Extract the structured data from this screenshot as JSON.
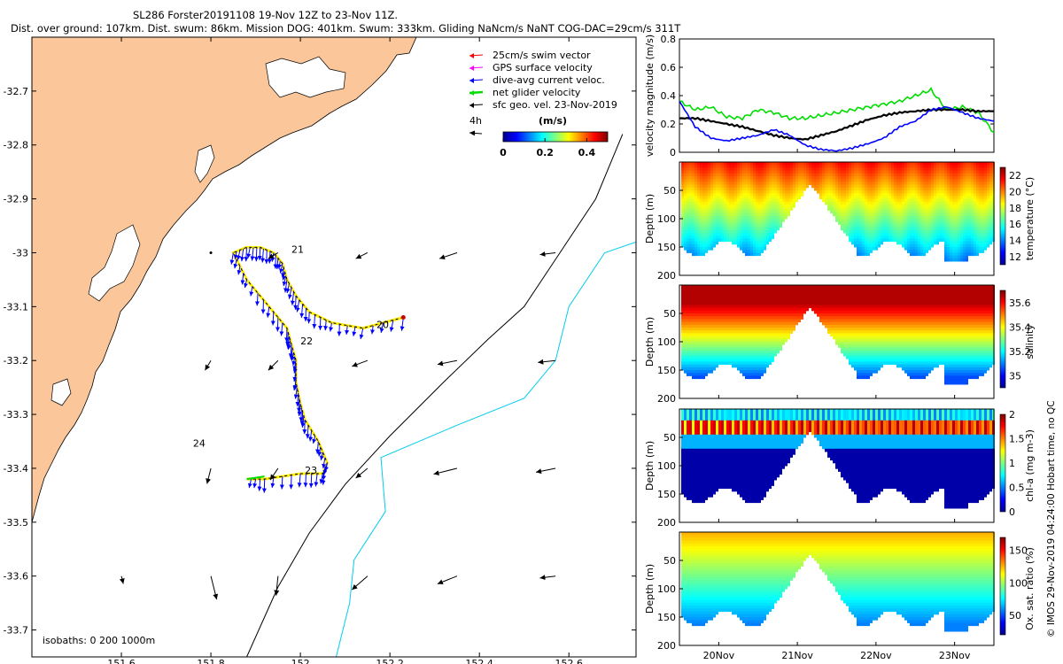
{
  "header": {
    "title": "SL286 Forster20191108 19-Nov 12Z to 23-Nov 11Z.",
    "subtitle": "Dist. over ground: 107km. Dist. swum: 86km. Mission DOG: 401km. Swum: 333km. Gliding NaNcm/s NaNT COG-DAC=29cm/s 311T"
  },
  "colors": {
    "land": "#fbc79a",
    "swim": "#ff0000",
    "gps": "#ff00ff",
    "dac": "#0000ff",
    "net": "#00dd00",
    "geo": "#000000",
    "isobath_200": "#000000",
    "isobath_1000": "#00ccee"
  },
  "map": {
    "x_ticks": [
      "151.6",
      "151.8",
      "152",
      "152.2",
      "152.4",
      "152.6"
    ],
    "y_ticks": [
      "-32.7",
      "-32.8",
      "-32.9",
      "-33",
      "-33.1",
      "-33.2",
      "-33.3",
      "-33.4",
      "-33.5",
      "-33.6",
      "-33.7"
    ],
    "xlim": [
      151.4,
      152.75
    ],
    "ylim": [
      -33.75,
      -32.6
    ],
    "legend": [
      {
        "label": "25cm/s swim vector",
        "color": "#ff0000",
        "icon": "arrow-icon"
      },
      {
        "label": "GPS surface velocity",
        "color": "#ff00ff",
        "icon": "arrow-icon"
      },
      {
        "label": "dive-avg current veloc.",
        "color": "#0000ff",
        "icon": "arrow-icon"
      },
      {
        "label": "net glider velocity",
        "color": "#00dd00",
        "icon": "arrow-icon"
      },
      {
        "label": "sfc geo. vel. 23-Nov-2019",
        "color": "#000000",
        "icon": "arrow-icon"
      }
    ],
    "scale_label": "4h",
    "colorbar": {
      "title": "(m/s)",
      "ticks": [
        "0",
        "0.2",
        "0.4"
      ],
      "range": [
        0,
        0.5
      ],
      "colormap": "jet"
    },
    "day_labels": [
      {
        "text": "21",
        "lon": 151.98,
        "lat": -33.0
      },
      {
        "text": "20",
        "lon": 152.17,
        "lat": -33.14
      },
      {
        "text": "22",
        "lon": 152.0,
        "lat": -33.17
      },
      {
        "text": "24",
        "lon": 151.76,
        "lat": -33.36
      },
      {
        "text": "23",
        "lon": 152.01,
        "lat": -33.41
      }
    ],
    "isobath_label": "isobaths: 0   200  1000m"
  },
  "panels": {
    "x_ticks": [
      "20Nov",
      "21Nov",
      "22Nov",
      "23Nov"
    ],
    "xlim_days": [
      19.5,
      23.5
    ],
    "velocity": {
      "ylabel": "velocity magnitude (m/s)",
      "y_ticks": [
        "0",
        "0.2",
        "0.4",
        "0.6",
        "0.8"
      ],
      "ylim": [
        0,
        0.8
      ]
    },
    "sections": [
      {
        "ylabel": "Depth (m)",
        "cbar_label": "temperature (°C)",
        "cbar_ticks": [
          "12",
          "14",
          "16",
          "18",
          "20",
          "22"
        ],
        "y_ticks": [
          "50",
          "100",
          "150",
          "200"
        ]
      },
      {
        "ylabel": "Depth (m)",
        "cbar_label": "salinity",
        "cbar_ticks": [
          "35",
          "35.2",
          "35.4",
          "35.6"
        ],
        "y_ticks": [
          "50",
          "100",
          "150",
          "200"
        ]
      },
      {
        "ylabel": "Depth (m)",
        "cbar_label": "chl-a (mg m-3)",
        "cbar_ticks": [
          "0",
          "0.5",
          "1",
          "1.5",
          "2"
        ],
        "y_ticks": [
          "50",
          "100",
          "150",
          "200"
        ]
      },
      {
        "ylabel": "Depth (m)",
        "cbar_label": "Ox. sat. ratio (%)",
        "cbar_ticks": [
          "50",
          "100",
          "150"
        ],
        "y_ticks": [
          "50",
          "100",
          "150",
          "200"
        ]
      }
    ]
  },
  "credit": "© IMOS 29-Nov-2019 04:24:00 Hobart time, no QC",
  "chart_data": [
    {
      "type": "scatter",
      "title": "SL286 Forster20191108 19-Nov 12Z to 23-Nov 11Z.",
      "xlabel": "",
      "ylabel": "",
      "xlim": [
        151.4,
        152.75
      ],
      "ylim": [
        -33.75,
        -32.6
      ],
      "glider_track": {
        "lon": [
          152.23,
          152.14,
          152.07,
          152.02,
          151.99,
          151.97,
          151.96,
          151.94,
          151.91,
          151.88,
          151.85,
          151.88,
          151.93,
          151.97,
          151.98,
          151.99,
          151.99,
          152.0,
          152.01,
          152.04,
          152.06,
          152.05,
          152.0,
          151.92,
          151.88
        ],
        "lat": [
          -33.12,
          -33.14,
          -33.13,
          -33.11,
          -33.08,
          -33.05,
          -33.02,
          -33.0,
          -32.99,
          -32.99,
          -33.0,
          -33.05,
          -33.1,
          -33.14,
          -33.17,
          -33.2,
          -33.24,
          -33.28,
          -33.31,
          -33.35,
          -33.39,
          -33.41,
          -33.41,
          -33.42,
          -33.42
        ]
      },
      "geostrophic_vectors": {
        "lon": [
          151.8,
          151.95,
          152.15,
          152.35,
          152.57,
          151.8,
          151.95,
          152.15,
          152.35,
          152.57,
          151.8,
          151.95,
          152.15,
          152.35,
          152.57,
          151.6,
          151.8,
          151.95,
          152.15,
          152.35,
          152.57
        ],
        "lat": [
          -33.0,
          -33.0,
          -33.0,
          -33.0,
          -33.0,
          -33.2,
          -33.2,
          -33.2,
          -33.2,
          -33.2,
          -33.4,
          -33.4,
          -33.4,
          -33.4,
          -33.4,
          -33.6,
          -33.6,
          -33.6,
          -33.6,
          -33.6,
          -33.6
        ],
        "u": [
          0.0,
          -0.05,
          -0.06,
          -0.09,
          -0.08,
          -0.03,
          -0.05,
          -0.08,
          -0.1,
          -0.09,
          -0.02,
          -0.04,
          -0.06,
          -0.12,
          -0.1,
          0.01,
          0.03,
          -0.01,
          -0.08,
          -0.1,
          -0.08
        ],
        "v": [
          0.0,
          -0.03,
          -0.03,
          -0.03,
          -0.01,
          -0.05,
          -0.05,
          -0.03,
          -0.02,
          -0.01,
          -0.08,
          -0.06,
          -0.05,
          -0.03,
          -0.02,
          -0.04,
          -0.12,
          -0.1,
          -0.07,
          -0.04,
          -0.01
        ]
      },
      "isobaths": [
        {
          "depth": 200,
          "lon": [
            151.88,
            151.95,
            152.02,
            152.1,
            152.2,
            152.32,
            152.42,
            152.5,
            152.58,
            152.66,
            152.72
          ],
          "lat": [
            -33.75,
            -33.62,
            -33.52,
            -33.43,
            -33.34,
            -33.24,
            -33.16,
            -33.1,
            -33.0,
            -32.9,
            -32.78
          ]
        },
        {
          "depth": 1000,
          "lon": [
            152.08,
            152.11,
            152.12,
            152.19,
            152.18,
            152.35,
            152.5,
            152.57,
            152.6,
            152.68,
            152.75
          ],
          "lat": [
            -33.75,
            -33.65,
            -33.57,
            -33.48,
            -33.38,
            -33.32,
            -33.27,
            -33.2,
            -33.1,
            -33.0,
            -32.98
          ]
        }
      ]
    },
    {
      "type": "line",
      "xlabel": "",
      "ylabel": "velocity magnitude (m/s)",
      "xlim": [
        19.5,
        23.5
      ],
      "ylim": [
        0,
        0.8
      ],
      "x": [
        19.5,
        19.7,
        19.9,
        20.1,
        20.3,
        20.5,
        20.7,
        20.9,
        21.1,
        21.3,
        21.5,
        21.7,
        21.9,
        22.1,
        22.3,
        22.5,
        22.7,
        22.9,
        23.1,
        23.3,
        23.5
      ],
      "series": [
        {
          "name": "net glider velocity",
          "color": "#00dd00",
          "values": [
            0.36,
            0.3,
            0.32,
            0.25,
            0.24,
            0.3,
            0.28,
            0.24,
            0.24,
            0.26,
            0.28,
            0.3,
            0.32,
            0.34,
            0.36,
            0.4,
            0.44,
            0.3,
            0.32,
            0.28,
            0.14
          ]
        },
        {
          "name": "sfc geo. vel.",
          "color": "#000000",
          "values": [
            0.24,
            0.24,
            0.22,
            0.2,
            0.18,
            0.15,
            0.12,
            0.1,
            0.09,
            0.12,
            0.15,
            0.19,
            0.23,
            0.26,
            0.28,
            0.29,
            0.3,
            0.3,
            0.3,
            0.29,
            0.29
          ]
        },
        {
          "name": "dive-avg current veloc.",
          "color": "#0000ff",
          "values": [
            0.36,
            0.18,
            0.1,
            0.08,
            0.1,
            0.12,
            0.16,
            0.12,
            0.05,
            0.02,
            0.01,
            0.03,
            0.06,
            0.1,
            0.18,
            0.22,
            0.3,
            0.32,
            0.28,
            0.24,
            0.22
          ]
        }
      ]
    },
    {
      "type": "heatmap",
      "title": "",
      "ylabel": "Depth (m)",
      "xlim": [
        19.5,
        23.5
      ],
      "ylim": [
        200,
        0
      ],
      "variables": [
        {
          "name": "temperature (°C)",
          "range": [
            11,
            23
          ]
        },
        {
          "name": "salinity",
          "range": [
            34.9,
            35.7
          ]
        },
        {
          "name": "chl-a (mg m-3)",
          "range": [
            0,
            2
          ]
        },
        {
          "name": "Ox. sat. ratio (%)",
          "range": [
            20,
            170
          ]
        }
      ]
    }
  ]
}
